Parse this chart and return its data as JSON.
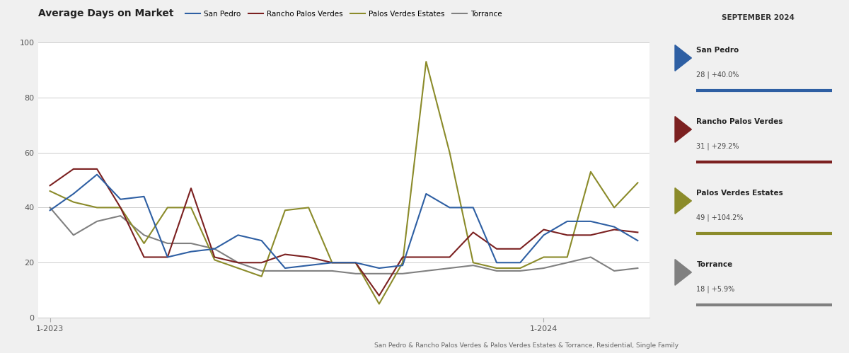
{
  "title": "Average Days on Market",
  "subtitle_parts": [
    {
      "text": "San Pedro",
      "bold": true,
      "color": "#2e5fa3"
    },
    {
      "text": " & ",
      "bold": false,
      "color": "#555555"
    },
    {
      "text": "Rancho Palos Verdes",
      "bold": true,
      "color": "#7b2020"
    },
    {
      "text": " & Palos Verdes Estates & Torrance, Residential, Single Family",
      "bold": false,
      "color": "#555555"
    }
  ],
  "legend_labels": [
    "San Pedro",
    "Rancho Palos Verdes",
    "Palos Verdes Estates",
    "Torrance"
  ],
  "colors": {
    "san_pedro": "#2e5fa3",
    "rancho_palos_verdes": "#7b2020",
    "palos_verdes_estates": "#8b8b2a",
    "torrance": "#808080"
  },
  "sidebar_title": "SEPTEMBER 2024",
  "sidebar_entries": [
    {
      "name": "San Pedro",
      "value": "28",
      "change": "+40.0%",
      "color": "#2e5fa3"
    },
    {
      "name": "Rancho Palos Verdes",
      "value": "31",
      "change": "+29.2%",
      "color": "#7b2020"
    },
    {
      "name": "Palos Verdes Estates",
      "value": "49",
      "change": "+104.2%",
      "color": "#8b8b2a"
    },
    {
      "name": "Torrance",
      "value": "18",
      "change": "+5.9%",
      "color": "#808080"
    }
  ],
  "x_labels": [
    "1-2023",
    "1-2024"
  ],
  "ylim": [
    0,
    100
  ],
  "yticks": [
    0,
    20,
    40,
    60,
    80,
    100
  ],
  "san_pedro": [
    39,
    45,
    52,
    43,
    44,
    22,
    24,
    25,
    30,
    28,
    18,
    19,
    20,
    20,
    18,
    19,
    45,
    40,
    40,
    20,
    20,
    30,
    35,
    35,
    33,
    28
  ],
  "rancho_palos_verdes": [
    48,
    54,
    54,
    40,
    22,
    22,
    47,
    22,
    20,
    20,
    23,
    22,
    20,
    20,
    8,
    22,
    22,
    22,
    31,
    25,
    25,
    32,
    30,
    30,
    32,
    31
  ],
  "palos_verdes_estates": [
    46,
    42,
    40,
    40,
    27,
    40,
    40,
    21,
    18,
    15,
    39,
    40,
    20,
    20,
    5,
    20,
    93,
    60,
    20,
    18,
    18,
    22,
    22,
    53,
    40,
    49
  ],
  "torrance": [
    40,
    30,
    35,
    37,
    30,
    27,
    27,
    25,
    20,
    17,
    17,
    17,
    17,
    16,
    16,
    16,
    17,
    18,
    19,
    17,
    17,
    18,
    20,
    22,
    17,
    18
  ],
  "background_color": "#f0f0f0",
  "plot_bg_color": "#ffffff",
  "grid_color": "#cccccc",
  "x_tick_positions": [
    0,
    21
  ]
}
